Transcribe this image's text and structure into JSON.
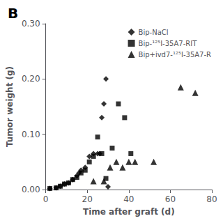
{
  "chart_data": {
    "type": "scatter",
    "title": "B",
    "xlabel": "Time after graft (d)",
    "ylabel": "Tumor weight (g)",
    "xlim": [
      0,
      80
    ],
    "ylim": [
      0,
      0.3
    ],
    "xticks": [
      0,
      20,
      40,
      60,
      80
    ],
    "yticks": [
      {
        "value": 0.0,
        "label": "0.00"
      },
      {
        "value": 0.1,
        "label": "0.10"
      },
      {
        "value": 0.2,
        "label": "0.20"
      },
      {
        "value": 0.3,
        "label": "0.30"
      }
    ],
    "grid": false,
    "legend": "upper right",
    "series": [
      {
        "name": "Bip-NaCl",
        "color": "#000000",
        "marker": "diamond",
        "x": [
          2,
          5,
          7,
          9,
          11,
          13,
          15,
          16,
          17,
          19,
          21,
          23,
          25,
          26,
          27,
          28,
          29,
          30
        ],
        "values": [
          0.002,
          0.003,
          0.006,
          0.01,
          0.012,
          0.018,
          0.025,
          0.03,
          0.035,
          0.04,
          0.06,
          0.065,
          0.065,
          0.065,
          0.13,
          0.155,
          0.2,
          0.005
        ]
      },
      {
        "name": "Bip-¹²⁵I-35A7-RIT",
        "color": "#000000",
        "marker": "square",
        "x": [
          2,
          5,
          7,
          9,
          11,
          13,
          15,
          17,
          19,
          21,
          23,
          25,
          27,
          29,
          32,
          35,
          38,
          41
        ],
        "values": [
          0.002,
          0.003,
          0.006,
          0.01,
          0.012,
          0.018,
          0.022,
          0.03,
          0.035,
          0.05,
          0.06,
          0.095,
          0.065,
          0.02,
          0.075,
          0.155,
          0.13,
          0.065
        ]
      },
      {
        "name": "Bip+ivd7-¹²⁵I-35A7-R",
        "color": "#000000",
        "marker": "triangle",
        "x": [
          23,
          28,
          31,
          34,
          37,
          40,
          43,
          52,
          65,
          72
        ],
        "values": [
          0.015,
          0.015,
          0.04,
          0.05,
          0.04,
          0.05,
          0.05,
          0.05,
          0.185,
          0.175
        ]
      }
    ]
  }
}
